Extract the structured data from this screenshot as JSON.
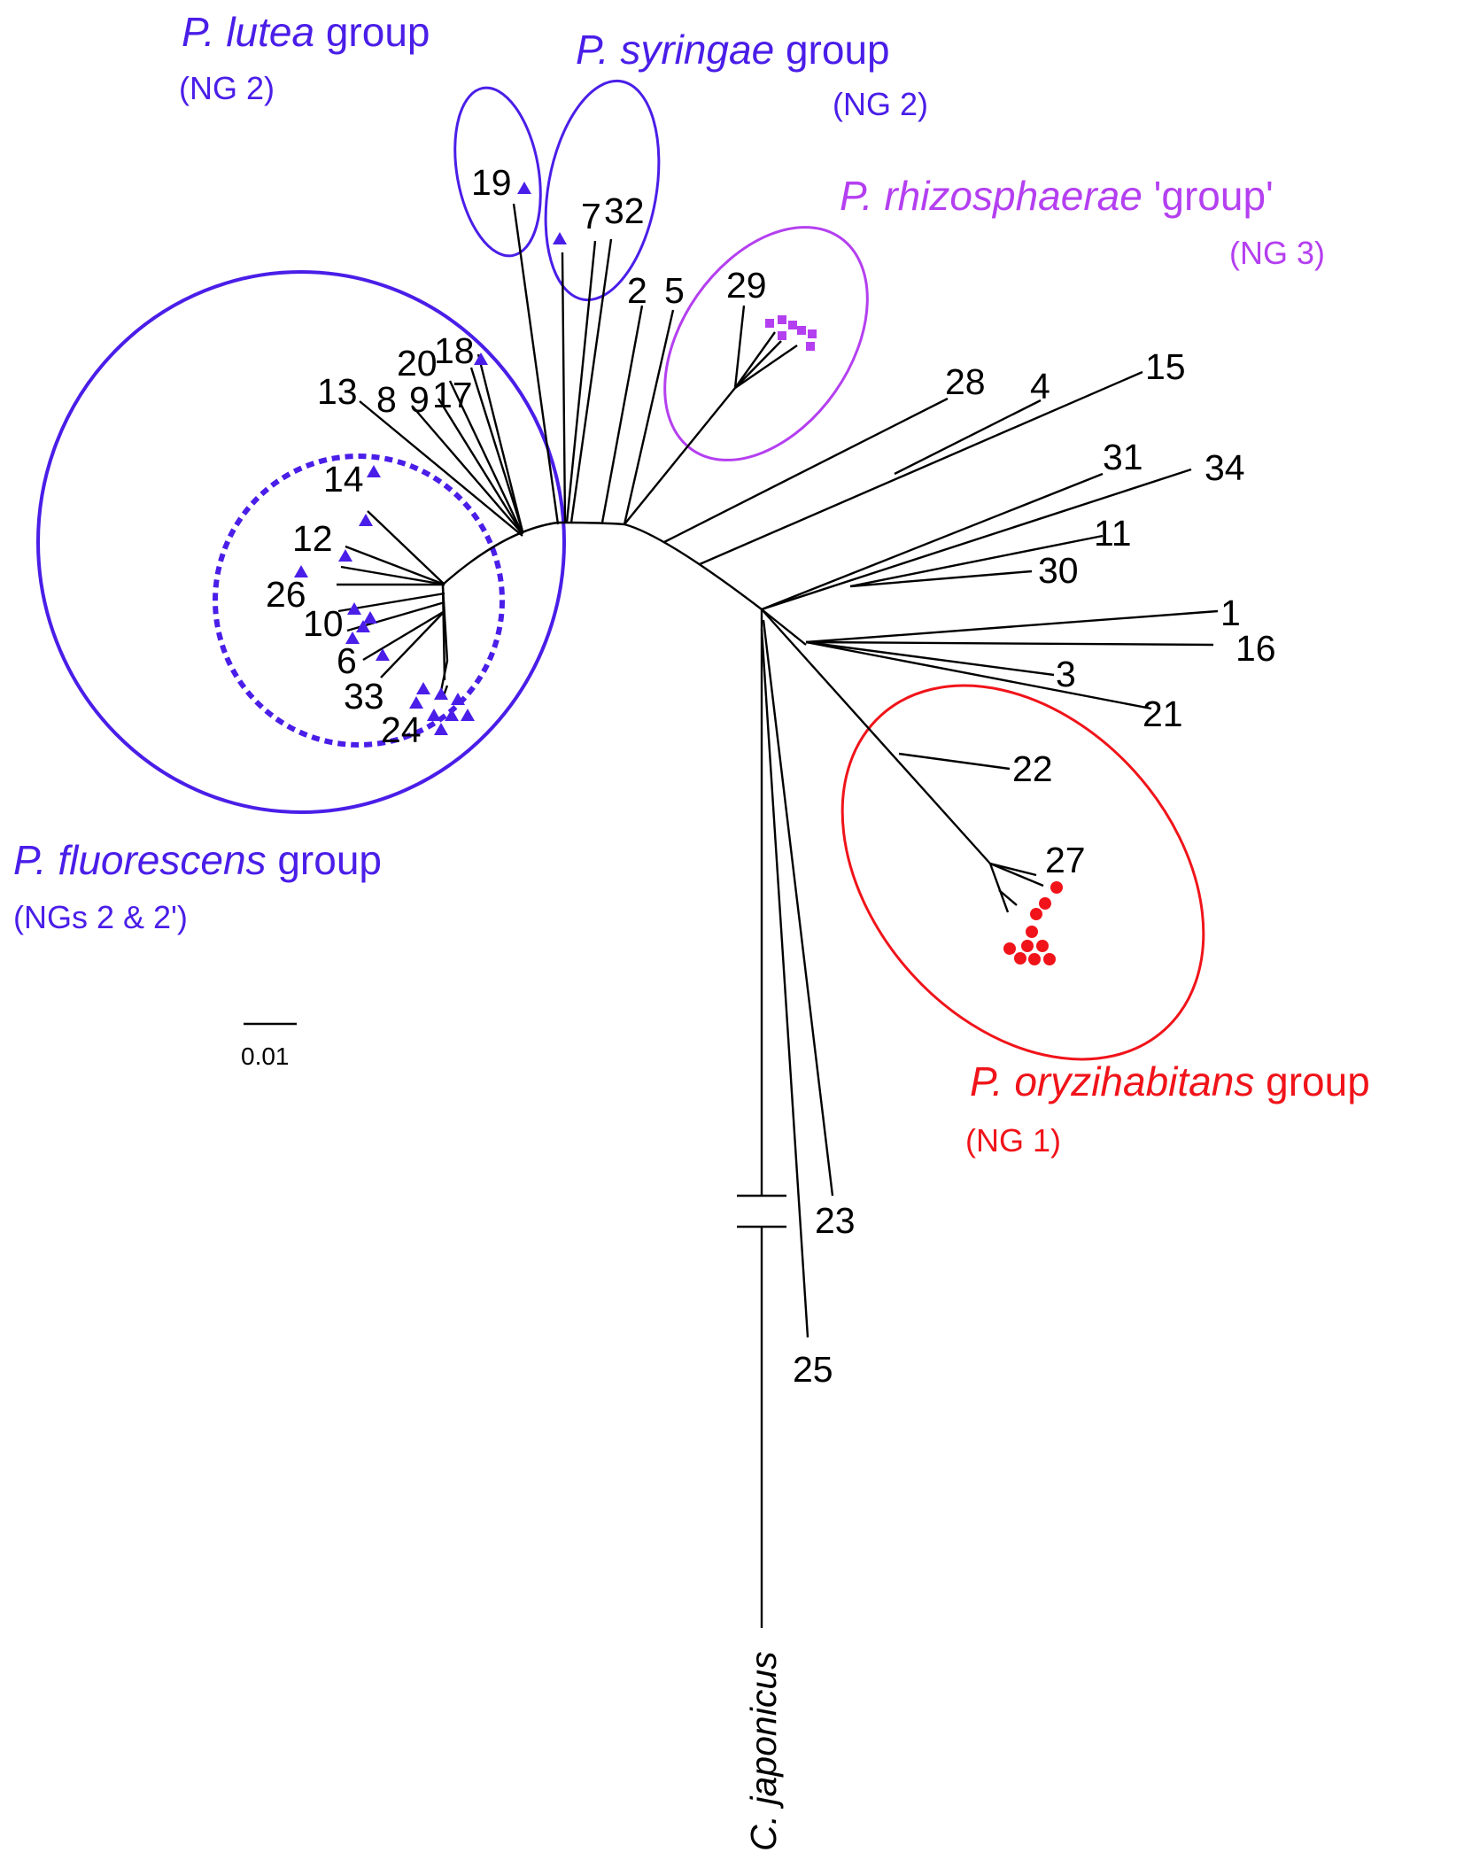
{
  "colors": {
    "blue": "#4a1ee8",
    "magenta": "#b43ff0",
    "red": "#f0141a",
    "black": "#000000"
  },
  "groups": {
    "lutea": {
      "species": "P. lutea",
      "word": "group",
      "ng": "(NG 2)"
    },
    "syringae": {
      "species": "P. syringae",
      "word": "group",
      "ng": "(NG 2)"
    },
    "rhizosphaerae": {
      "species": "P. rhizosphaerae",
      "word": "'group'",
      "ng": "(NG 3)"
    },
    "fluorescens": {
      "species": "P. fluorescens",
      "word": "group",
      "ng": "(NGs 2 & 2')"
    },
    "oryzihabitans": {
      "species": "P. oryzihabitans",
      "word": "group",
      "ng": "(NG 1)"
    }
  },
  "leaves": [
    "1",
    "2",
    "3",
    "4",
    "5",
    "6",
    "7",
    "8",
    "9",
    "10",
    "11",
    "12",
    "13",
    "14",
    "15",
    "16",
    "17",
    "18",
    "19",
    "20",
    "21",
    "22",
    "23",
    "24",
    "25",
    "26",
    "27",
    "28",
    "29",
    "30",
    "31",
    "32",
    "33",
    "34"
  ],
  "outgroup": "C. japonicus",
  "scale_bar": "0.01",
  "markers": {
    "triangles": {
      "shape": "triangle",
      "group": "blue"
    },
    "squares": {
      "shape": "square",
      "group": "magenta"
    },
    "circles": {
      "shape": "circle",
      "group": "red"
    }
  }
}
